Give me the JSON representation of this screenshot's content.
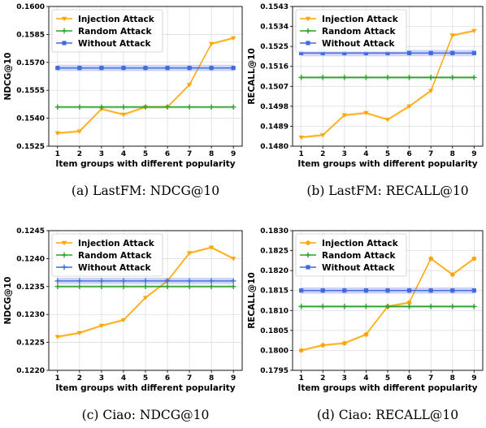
{
  "colors": {
    "injection": "#ffa500",
    "random": "#2ca02c",
    "without": "#4169e1"
  },
  "chart_data": [
    {
      "type": "line",
      "caption": "(a) LastFM: NDCG@10",
      "xlabel": "Item groups with different popularity",
      "ylabel": "NDCG@10",
      "x": [
        1,
        2,
        3,
        4,
        5,
        6,
        7,
        8,
        9
      ],
      "ylim": [
        0.1525,
        0.16
      ],
      "yticks": [
        "0.1525",
        "0.1540",
        "0.1555",
        "0.1570",
        "0.1585",
        "0.1600"
      ],
      "legend_position": "top-left",
      "grid": true,
      "series": [
        {
          "name": "Injection Attack",
          "key": "injection",
          "marker": "triangle-down",
          "values": [
            0.1532,
            0.1533,
            0.1545,
            0.1542,
            0.1546,
            0.1546,
            0.1558,
            0.158,
            0.1583
          ]
        },
        {
          "name": "Random Attack",
          "key": "random",
          "marker": "plus",
          "values": [
            0.1546,
            0.1546,
            0.1546,
            0.1546,
            0.1546,
            0.1546,
            0.1546,
            0.1546,
            0.1546
          ]
        },
        {
          "name": "Without Attack",
          "key": "without",
          "marker": "square",
          "values": [
            0.1567,
            0.1567,
            0.1567,
            0.1567,
            0.1567,
            0.1567,
            0.1567,
            0.1567,
            0.1567
          ]
        }
      ]
    },
    {
      "type": "line",
      "caption": "(b) LastFM: RECALL@10",
      "xlabel": "Item groups with different popularity",
      "ylabel": "RECALL@10",
      "x": [
        1,
        2,
        3,
        4,
        5,
        6,
        7,
        8,
        9
      ],
      "ylim": [
        0.148,
        0.1543
      ],
      "yticks": [
        "0.1480",
        "0.1489",
        "0.1498",
        "0.1507",
        "0.1516",
        "0.1525",
        "0.1534",
        "0.1543"
      ],
      "legend_position": "top-left",
      "grid": true,
      "series": [
        {
          "name": "Injection Attack",
          "key": "injection",
          "marker": "triangle-down",
          "values": [
            0.1484,
            0.1485,
            0.1494,
            0.1495,
            0.1492,
            0.1498,
            0.1505,
            0.153,
            0.1532
          ]
        },
        {
          "name": "Random Attack",
          "key": "random",
          "marker": "plus",
          "values": [
            0.1511,
            0.1511,
            0.1511,
            0.1511,
            0.1511,
            0.1511,
            0.1511,
            0.1511,
            0.1511
          ]
        },
        {
          "name": "Without Attack",
          "key": "without",
          "marker": "square",
          "values": [
            0.1522,
            0.1522,
            0.1522,
            0.1522,
            0.1522,
            0.1522,
            0.1522,
            0.1522,
            0.1522
          ]
        }
      ]
    },
    {
      "type": "line",
      "caption": "(c) Ciao: NDCG@10",
      "xlabel": "Item groups with different popularity",
      "ylabel": "NDCG@10",
      "x": [
        1,
        2,
        3,
        4,
        5,
        6,
        7,
        8,
        9
      ],
      "ylim": [
        0.122,
        0.1245
      ],
      "yticks": [
        "0.1220",
        "0.1225",
        "0.1230",
        "0.1235",
        "0.1240",
        "0.1245"
      ],
      "legend_position": "top-left",
      "grid": true,
      "series": [
        {
          "name": "Injection Attack",
          "key": "injection",
          "marker": "triangle-down",
          "values": [
            0.1226,
            0.12267,
            0.1228,
            0.1229,
            0.1233,
            0.1236,
            0.1241,
            0.1242,
            0.124
          ]
        },
        {
          "name": "Random Attack",
          "key": "random",
          "marker": "plus",
          "values": [
            0.1235,
            0.1235,
            0.1235,
            0.1235,
            0.1235,
            0.1235,
            0.1235,
            0.1235,
            0.1235
          ]
        },
        {
          "name": "Without Attack",
          "key": "without",
          "marker": "plus",
          "values": [
            0.1236,
            0.1236,
            0.1236,
            0.1236,
            0.1236,
            0.1236,
            0.1236,
            0.1236,
            0.1236
          ]
        }
      ]
    },
    {
      "type": "line",
      "caption": "(d) Ciao: RECALL@10",
      "xlabel": "Item groups with different popularity",
      "ylabel": "RECALL@10",
      "x": [
        1,
        2,
        3,
        4,
        5,
        6,
        7,
        8,
        9
      ],
      "ylim": [
        0.1795,
        0.183
      ],
      "yticks": [
        "0.1795",
        "0.1800",
        "0.1805",
        "0.1810",
        "0.1815",
        "0.1820",
        "0.1825",
        "0.1830"
      ],
      "legend_position": "top-left",
      "grid": true,
      "series": [
        {
          "name": "Injection Attack",
          "key": "injection",
          "marker": "circle",
          "values": [
            0.18,
            0.18013,
            0.18018,
            0.1804,
            0.1811,
            0.1812,
            0.1823,
            0.1819,
            0.1823
          ]
        },
        {
          "name": "Random Attack",
          "key": "random",
          "marker": "plus",
          "values": [
            0.1811,
            0.1811,
            0.1811,
            0.1811,
            0.1811,
            0.1811,
            0.1811,
            0.1811,
            0.1811
          ]
        },
        {
          "name": "Without Attack",
          "key": "without",
          "marker": "square",
          "values": [
            0.1815,
            0.1815,
            0.1815,
            0.1815,
            0.1815,
            0.1815,
            0.1815,
            0.1815,
            0.1815
          ]
        }
      ]
    }
  ]
}
